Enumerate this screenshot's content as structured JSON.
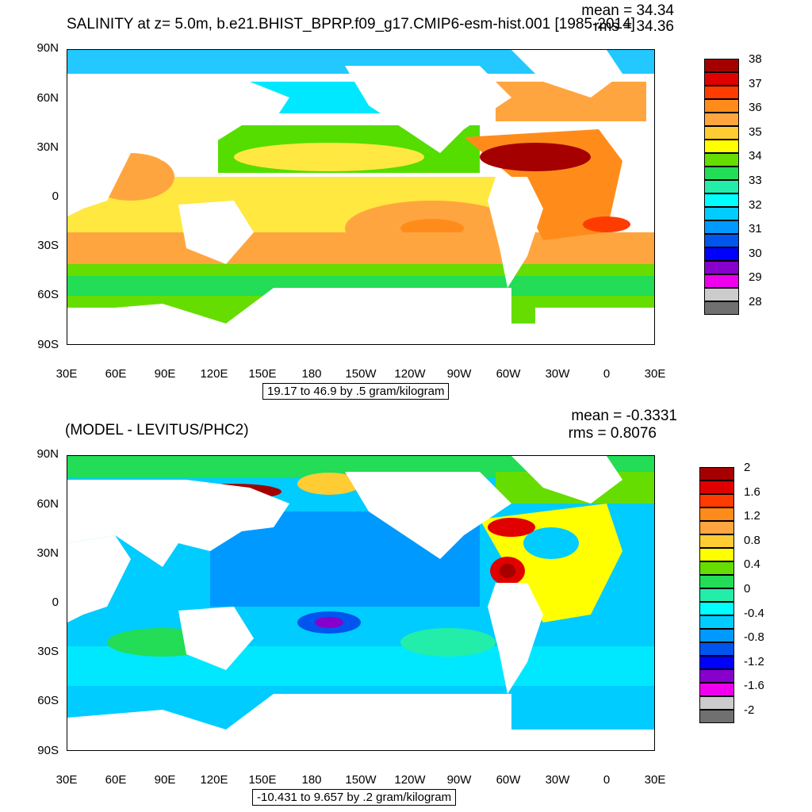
{
  "panels": [
    {
      "title_left": "SALINITY at z=   5.0m, b.e21.BHIST_BPRP.f09_g17.CMIP6-esm-hist.001 [1985-2014]",
      "stats_mean": "mean = 34.34",
      "stats_rms": "rms = 34.36",
      "caption": "19.17 to 46.9 by .5 gram/kilogram",
      "lat_labels": [
        "90N",
        "60N",
        "30N",
        "0",
        "30S",
        "60S",
        "90S"
      ],
      "lon_labels": [
        "30E",
        "60E",
        "90E",
        "120E",
        "150E",
        "180",
        "150W",
        "120W",
        "90W",
        "60W",
        "30W",
        "0",
        "30E"
      ],
      "colorbar": {
        "labels": [
          "38",
          "37",
          "36",
          "35",
          "34",
          "33",
          "32",
          "31",
          "30",
          "29",
          "28"
        ],
        "colors": [
          "#a50000",
          "#e00000",
          "#ff3c00",
          "#ff8c1a",
          "#ffa540",
          "#ffcc33",
          "#ffff00",
          "#66dd00",
          "#22dd55",
          "#22eeaa",
          "#00ffff",
          "#00ccff",
          "#0099ff",
          "#0055ee",
          "#0000ff",
          "#8800cc",
          "#ee00ee",
          "#cccccc",
          "#707070"
        ]
      }
    },
    {
      "title_left": "(MODEL - LEVITUS/PHC2)",
      "stats_mean": "mean = -0.3331",
      "stats_rms": "rms = 0.8076",
      "caption": "-10.431 to 9.657 by .2 gram/kilogram",
      "lat_labels": [
        "90N",
        "60N",
        "30N",
        "0",
        "30S",
        "60S",
        "90S"
      ],
      "lon_labels": [
        "30E",
        "60E",
        "90E",
        "120E",
        "150E",
        "180",
        "150W",
        "120W",
        "90W",
        "60W",
        "30W",
        "0",
        "30E"
      ],
      "colorbar": {
        "labels": [
          "2",
          "1.6",
          "1.2",
          "0.8",
          "0.4",
          "0",
          "-0.4",
          "-0.8",
          "-1.2",
          "-1.6",
          "-2"
        ],
        "colors": [
          "#a50000",
          "#e00000",
          "#ff3c00",
          "#ff8c1a",
          "#ffa540",
          "#ffcc33",
          "#ffff00",
          "#66dd00",
          "#22dd55",
          "#22eeaa",
          "#00ffff",
          "#00ccff",
          "#0099ff",
          "#0055ee",
          "#0000ff",
          "#8800cc",
          "#ee00ee",
          "#cccccc",
          "#707070"
        ]
      }
    }
  ]
}
